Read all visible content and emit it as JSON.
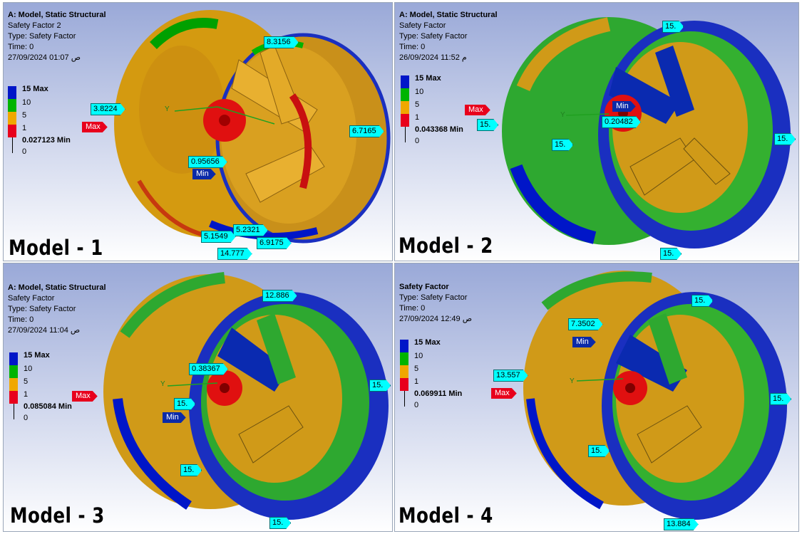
{
  "legend_colors": [
    "#0016c8",
    "#00b400",
    "#f0a800",
    "#e8001c"
  ],
  "panels": [
    {
      "model_label": "Model - 1",
      "info": {
        "line1": "A: Model, Static Structural",
        "line2": "Safety Factor 2",
        "line3": "Type: Safety Factor",
        "line4": "Time: 0",
        "line5": "27/09/2024 01:07 ص"
      },
      "legend": {
        "max": "15 Max",
        "l10": "10",
        "l5": "5",
        "l1": "1",
        "min": "0.027123 Min",
        "zero": "0"
      },
      "probes": [
        "8.3156",
        "3.8224",
        "6.7165",
        "0.95656",
        "5.2321",
        "5.1549",
        "6.9175",
        "14.777"
      ],
      "max_flag": "Max",
      "min_flag": "Min"
    },
    {
      "model_label": "Model - 2",
      "info": {
        "line1": "A: Model, Static Structural",
        "line2": "Safety Factor",
        "line3": "Type: Safety Factor",
        "line4": "Time: 0",
        "line5": "26/09/2024 11:52 م"
      },
      "legend": {
        "max": "15 Max",
        "l10": "10",
        "l5": "5",
        "l1": "1",
        "min": "0.043368 Min",
        "zero": "0"
      },
      "probes": [
        "15.",
        "15.",
        "0.20482",
        "15.",
        "15.",
        "15."
      ],
      "max_flag": "Max",
      "min_flag": "Min"
    },
    {
      "model_label": "Model - 3",
      "info": {
        "line1": "A: Model, Static Structural",
        "line2": "Safety Factor",
        "line3": "Type: Safety Factor",
        "line4": "Time: 0",
        "line5": "27/09/2024 11:04 ص"
      },
      "legend": {
        "max": "15 Max",
        "l10": "10",
        "l5": "5",
        "l1": "1",
        "min": "0.085084 Min",
        "zero": "0"
      },
      "probes": [
        "12.886",
        "0.38367",
        "15.",
        "15.",
        "15.",
        "15."
      ],
      "max_flag": "Max",
      "min_flag": "Min"
    },
    {
      "model_label": "Model - 4",
      "info": {
        "line1": "Safety Factor",
        "line2": "Type: Safety Factor",
        "line3": "Time: 0",
        "line4": "27/09/2024 12:49 ص"
      },
      "legend": {
        "max": "15 Max",
        "l10": "10",
        "l5": "5",
        "l1": "1",
        "min": "0.069911 Min",
        "zero": "0"
      },
      "probes": [
        "15.",
        "7.3502",
        "13.557",
        "15.",
        "15.",
        "13.884"
      ],
      "max_flag": "Max",
      "min_flag": "Min"
    }
  ],
  "axis_label": "Y"
}
